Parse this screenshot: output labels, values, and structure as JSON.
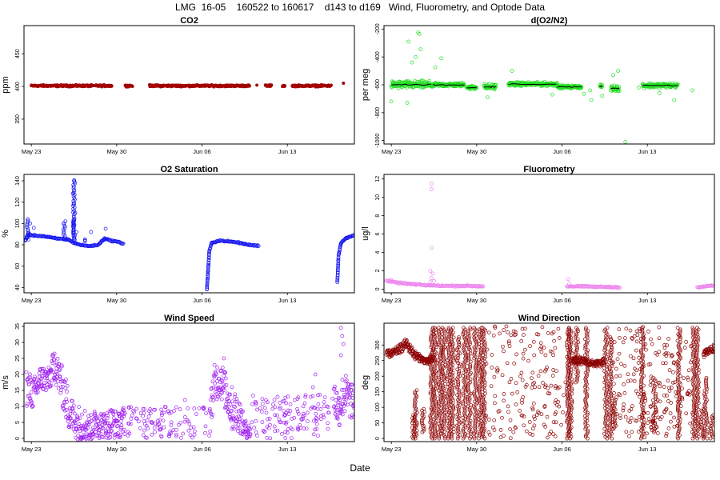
{
  "figure": {
    "title": "LMG  16-05    160522 to 160617    d143 to d169   Wind, Fluorometry, and Optode Data",
    "xlabel": "Date"
  },
  "chart_data": [
    {
      "id": "co2",
      "type": "scatter",
      "title": "CO2",
      "ylabel": "ppm",
      "color": "#a30000",
      "marker": "filled",
      "xlim": [
        142.4,
        169.5
      ],
      "ylim": [
        312,
        493
      ],
      "yticks": [
        350,
        400,
        450
      ],
      "xticks": [
        {
          "day": 143,
          "label": "May 23"
        },
        {
          "day": 150,
          "label": "May 30"
        },
        {
          "day": 157,
          "label": "Jun 06"
        },
        {
          "day": 164,
          "label": "Jun 13"
        }
      ],
      "segments": [
        {
          "x0": 143.0,
          "x1": 148.1,
          "y": 401,
          "spread": 2
        },
        {
          "x0": 148.3,
          "x1": 149.6,
          "y": 401,
          "spread": 2
        },
        {
          "x0": 150.7,
          "x1": 151.3,
          "y": 401,
          "spread": 2
        },
        {
          "x0": 152.7,
          "x1": 158.4,
          "y": 401,
          "spread": 2
        },
        {
          "x0": 158.5,
          "x1": 160.9,
          "y": 401,
          "spread": 2
        },
        {
          "x0": 162.2,
          "x1": 162.7,
          "y": 401,
          "spread": 2
        },
        {
          "x0": 163.6,
          "x1": 163.8,
          "y": 401,
          "spread": 2
        },
        {
          "x0": 164.4,
          "x1": 167.6,
          "y": 401,
          "spread": 2
        }
      ],
      "points": [
        [
          161.5,
          402
        ],
        [
          168.6,
          405
        ]
      ]
    },
    {
      "id": "do2n2",
      "type": "scatter",
      "title": "d(O2/N2)",
      "ylabel": "per meg",
      "color": "#22dd22",
      "mean_color": "#000000",
      "marker": "open",
      "xlim": [
        142.4,
        169.5
      ],
      "ylim": [
        -1025,
        -175
      ],
      "yticks": [
        -1000,
        -800,
        -600,
        -400,
        -200
      ],
      "xticks": [
        {
          "day": 143,
          "label": "May 23"
        },
        {
          "day": 150,
          "label": "May 30"
        },
        {
          "day": 157,
          "label": "Jun 06"
        },
        {
          "day": 164,
          "label": "Jun 13"
        }
      ],
      "segments": [
        {
          "x0": 143.0,
          "x1": 146.4,
          "y": -600,
          "spread": 40
        },
        {
          "x0": 146.4,
          "x1": 149.0,
          "y": -600,
          "spread": 20
        },
        {
          "x0": 149.2,
          "x1": 150.0,
          "y": -620,
          "spread": 20
        },
        {
          "x0": 150.6,
          "x1": 151.6,
          "y": -615,
          "spread": 30
        },
        {
          "x0": 152.6,
          "x1": 156.6,
          "y": -595,
          "spread": 20
        },
        {
          "x0": 156.6,
          "x1": 158.6,
          "y": -615,
          "spread": 15
        },
        {
          "x0": 160.1,
          "x1": 160.3,
          "y": -610,
          "spread": 15
        },
        {
          "x0": 161.0,
          "x1": 161.7,
          "y": -625,
          "spread": 30
        },
        {
          "x0": 163.6,
          "x1": 166.5,
          "y": -605,
          "spread": 25
        }
      ],
      "points": [
        [
          144.4,
          -290
        ],
        [
          145.2,
          -225
        ],
        [
          145.3,
          -235
        ],
        [
          145.4,
          -345
        ],
        [
          145.0,
          -400
        ],
        [
          144.7,
          -440
        ],
        [
          147.1,
          -410
        ],
        [
          146.6,
          -475
        ],
        [
          143.0,
          -720
        ],
        [
          144.3,
          -730
        ],
        [
          150.9,
          -690
        ],
        [
          152.9,
          -500
        ],
        [
          156.2,
          -670
        ],
        [
          158.8,
          -665
        ],
        [
          159.3,
          -640
        ],
        [
          159.4,
          -710
        ],
        [
          161.2,
          -530
        ],
        [
          161.6,
          -500
        ],
        [
          161.5,
          -610
        ],
        [
          160.3,
          -680
        ],
        [
          162.2,
          -1010
        ],
        [
          163.3,
          -620
        ],
        [
          165.0,
          -660
        ],
        [
          166.2,
          -710
        ],
        [
          167.7,
          -640
        ]
      ]
    },
    {
      "id": "o2sat",
      "type": "scatter",
      "title": "O2 Saturation",
      "ylabel": "%",
      "color": "#1515ee",
      "marker": "open",
      "xlim": [
        142.4,
        169.5
      ],
      "ylim": [
        35,
        146
      ],
      "yticks": [
        40,
        60,
        80,
        100,
        120,
        140
      ],
      "xticks": [
        {
          "day": 143,
          "label": "May 23"
        },
        {
          "day": 150,
          "label": "May 30"
        },
        {
          "day": 157,
          "label": "Jun 06"
        },
        {
          "day": 164,
          "label": "Jun 13"
        }
      ],
      "lines": [
        [
          [
            142.5,
            84
          ],
          [
            142.8,
            90
          ],
          [
            143.0,
            89
          ],
          [
            144.0,
            88
          ],
          [
            145.0,
            86
          ],
          [
            146.0,
            85
          ],
          [
            146.5,
            82
          ],
          [
            147.0,
            80
          ],
          [
            147.5,
            79
          ],
          [
            148.0,
            79
          ],
          [
            148.5,
            80
          ],
          [
            149.0,
            86
          ],
          [
            149.5,
            84
          ],
          [
            150.0,
            83
          ],
          [
            150.6,
            81
          ]
        ],
        [
          [
            157.4,
            38
          ],
          [
            157.5,
            56
          ],
          [
            157.6,
            74
          ],
          [
            157.8,
            82
          ],
          [
            158.5,
            84
          ],
          [
            159.3,
            83
          ],
          [
            160.0,
            82
          ],
          [
            160.8,
            80
          ],
          [
            161.7,
            79
          ]
        ],
        [
          [
            168.1,
            45
          ],
          [
            168.2,
            70
          ],
          [
            168.4,
            82
          ],
          [
            168.8,
            86
          ],
          [
            169.5,
            89
          ]
        ]
      ],
      "spikes": [
        [
          142.7,
          104
        ],
        [
          145.7,
          102
        ],
        [
          147.4,
          82
        ],
        [
          149.0,
          84
        ],
        [
          146.5,
          105
        ],
        [
          146.5,
          142
        ]
      ],
      "points": [
        [
          146.5,
          140
        ],
        [
          146.4,
          128
        ],
        [
          146.5,
          118
        ],
        [
          146.6,
          110
        ],
        [
          146.5,
          102
        ],
        [
          146.4,
          98
        ],
        [
          146.7,
          92
        ],
        [
          149.1,
          95
        ],
        [
          147.4,
          84
        ],
        [
          147.9,
          92
        ],
        [
          145.8,
          102
        ],
        [
          142.7,
          104
        ],
        [
          142.9,
          100
        ],
        [
          143.2,
          96
        ]
      ]
    },
    {
      "id": "fluor",
      "type": "scatter",
      "title": "Fluorometry",
      "ylabel": "ug/l",
      "color": "#ee82ee",
      "marker": "open",
      "xlim": [
        142.4,
        169.5
      ],
      "ylim": [
        -0.4,
        12.5
      ],
      "yticks": [
        0,
        2,
        4,
        6,
        8,
        10,
        12
      ],
      "xticks": [
        {
          "day": 143,
          "label": "May 23"
        },
        {
          "day": 150,
          "label": "May 30"
        },
        {
          "day": 157,
          "label": "Jun 06"
        },
        {
          "day": 164,
          "label": "Jun 13"
        }
      ],
      "lines": [
        [
          [
            142.6,
            0.9
          ],
          [
            143.5,
            0.7
          ],
          [
            145.0,
            0.5
          ],
          [
            146.2,
            0.4
          ],
          [
            147.5,
            0.35
          ],
          [
            149.0,
            0.35
          ],
          [
            150.6,
            0.3
          ]
        ],
        [
          [
            157.4,
            0.3
          ],
          [
            158.5,
            0.3
          ],
          [
            160.0,
            0.25
          ],
          [
            161.8,
            0.2
          ]
        ],
        [
          [
            168.1,
            0.2
          ],
          [
            168.8,
            0.3
          ],
          [
            169.5,
            0.4
          ]
        ]
      ],
      "points": [
        [
          146.3,
          11.5
        ],
        [
          146.3,
          10.9
        ],
        [
          146.3,
          4.5
        ],
        [
          146.2,
          2.0
        ],
        [
          146.4,
          1.7
        ],
        [
          146.3,
          1.2
        ],
        [
          146.5,
          0.9
        ],
        [
          146.2,
          0.8
        ],
        [
          157.5,
          1.1
        ],
        [
          157.6,
          0.6
        ],
        [
          143.0,
          1.0
        ]
      ]
    },
    {
      "id": "wspd",
      "type": "scatter",
      "title": "Wind Speed",
      "ylabel": "m/s",
      "color": "#a020f0",
      "marker": "open",
      "xlim": [
        142.4,
        169.5
      ],
      "ylim": [
        -1,
        36
      ],
      "yticks": [
        0,
        5,
        10,
        15,
        20,
        25,
        30,
        35
      ],
      "xticks": [
        {
          "day": 143,
          "label": "May 23"
        },
        {
          "day": 150,
          "label": "May 30"
        },
        {
          "day": 157,
          "label": "Jun 06"
        },
        {
          "day": 164,
          "label": "Jun 13"
        }
      ],
      "bands": [
        [
          [
            142.6,
            16,
            6
          ],
          [
            143.2,
            14,
            5
          ],
          [
            143.8,
            19,
            4
          ],
          [
            144.4,
            18,
            4
          ],
          [
            144.9,
            23,
            5
          ],
          [
            145.4,
            18,
            6
          ],
          [
            146.0,
            10,
            7
          ],
          [
            146.6,
            5,
            5
          ],
          [
            147.2,
            5,
            6
          ],
          [
            147.8,
            3,
            4
          ],
          [
            148.4,
            5,
            5
          ],
          [
            149.0,
            4,
            4
          ],
          [
            149.6,
            5,
            5
          ],
          [
            150.2,
            4,
            4
          ],
          [
            150.7,
            6,
            5
          ]
        ],
        [
          [
            157.6,
            6,
            6
          ],
          [
            158.0,
            17,
            6
          ],
          [
            158.5,
            19,
            6
          ],
          [
            159.0,
            14,
            6
          ],
          [
            159.5,
            9,
            7
          ],
          [
            160.0,
            8,
            6
          ],
          [
            160.5,
            3,
            3
          ],
          [
            161.0,
            2,
            2
          ]
        ],
        [
          [
            167.8,
            13,
            6
          ],
          [
            168.2,
            9,
            6
          ],
          [
            168.6,
            14,
            7
          ],
          [
            169.2,
            12,
            6
          ],
          [
            169.5,
            10,
            5
          ]
        ]
      ],
      "scatter_ranges": [
        {
          "x0": 150.8,
          "x1": 157.4,
          "y0": 0,
          "y1": 10,
          "n": 110
        },
        {
          "x0": 161.0,
          "x1": 167.7,
          "y0": 0,
          "y1": 14,
          "n": 130
        }
      ],
      "points": [
        [
          168.4,
          34.5
        ],
        [
          168.5,
          32
        ],
        [
          168.6,
          29.5
        ],
        [
          168.4,
          26
        ],
        [
          158.8,
          25
        ],
        [
          144.9,
          26.5
        ],
        [
          163.2,
          13
        ],
        [
          165.5,
          13.5
        ],
        [
          166.3,
          20
        ],
        [
          166.1,
          16
        ],
        [
          155.6,
          12
        ],
        [
          164.6,
          12
        ]
      ]
    },
    {
      "id": "wdir",
      "type": "scatter",
      "title": "Wind Direction",
      "ylabel": "deg",
      "color": "#8b0000",
      "marker": "open",
      "xlim": [
        142.4,
        169.5
      ],
      "ylim": [
        -10,
        370
      ],
      "yticks": [
        0,
        50,
        100,
        150,
        200,
        250,
        300
      ],
      "xticks": [
        {
          "day": 143,
          "label": "May 23"
        },
        {
          "day": 150,
          "label": "May 30"
        },
        {
          "day": 157,
          "label": "Jun 06"
        },
        {
          "day": 164,
          "label": "Jun 13"
        }
      ],
      "bands": [
        [
          [
            142.6,
            270,
            12
          ],
          [
            143.2,
            275,
            12
          ],
          [
            143.8,
            290,
            15
          ],
          [
            144.2,
            305,
            15
          ],
          [
            144.6,
            285,
            15
          ],
          [
            145.0,
            265,
            15
          ],
          [
            145.5,
            255,
            10
          ],
          [
            146.0,
            245,
            10
          ],
          [
            146.5,
            260,
            15
          ]
        ],
        [
          [
            157.8,
            250,
            12
          ],
          [
            158.4,
            250,
            12
          ],
          [
            159.0,
            245,
            10
          ],
          [
            159.6,
            240,
            10
          ],
          [
            160.2,
            240,
            10
          ],
          [
            160.5,
            250,
            12
          ]
        ],
        [
          [
            168.6,
            270,
            12
          ],
          [
            169.0,
            280,
            12
          ],
          [
            169.5,
            290,
            12
          ]
        ]
      ],
      "verticals": [
        [
          146.6,
          0,
          360
        ],
        [
          147.0,
          0,
          360
        ],
        [
          147.3,
          0,
          360
        ],
        [
          147.7,
          0,
          360
        ],
        [
          148.0,
          0,
          360
        ],
        [
          148.5,
          0,
          330
        ],
        [
          149.0,
          0,
          360
        ],
        [
          149.4,
          0,
          360
        ],
        [
          149.9,
          0,
          360
        ],
        [
          150.3,
          0,
          360
        ],
        [
          150.6,
          0,
          360
        ],
        [
          146.3,
          0,
          360
        ],
        [
          145.6,
          20,
          100
        ],
        [
          145.0,
          0,
          160
        ],
        [
          144.8,
          0,
          80
        ],
        [
          157.5,
          0,
          360
        ],
        [
          157.7,
          0,
          360
        ],
        [
          158.2,
          180,
          360
        ],
        [
          159.0,
          0,
          360
        ],
        [
          160.6,
          0,
          360
        ],
        [
          161.0,
          0,
          330
        ],
        [
          161.3,
          30,
          130
        ],
        [
          163.6,
          0,
          360
        ],
        [
          164.6,
          20,
          200
        ],
        [
          166.6,
          0,
          360
        ],
        [
          167.8,
          0,
          360
        ],
        [
          168.1,
          0,
          360
        ],
        [
          168.5,
          0,
          100
        ],
        [
          168.8,
          0,
          200
        ],
        [
          169.3,
          0,
          80
        ]
      ],
      "scatter_ranges": [
        {
          "x0": 150.7,
          "x1": 157.4,
          "y0": 0,
          "y1": 360,
          "n": 170
        },
        {
          "x0": 161.2,
          "x1": 167.6,
          "y0": 0,
          "y1": 360,
          "n": 190
        }
      ],
      "points": []
    }
  ]
}
